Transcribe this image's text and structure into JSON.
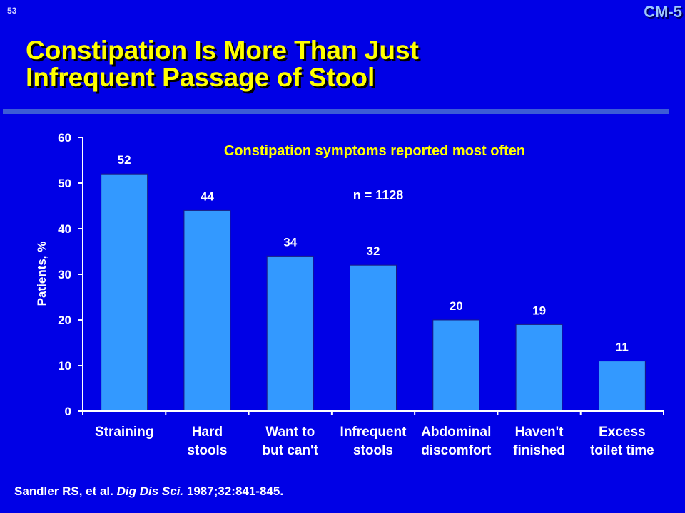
{
  "slide": {
    "number": "53",
    "code": "CM-5",
    "title_line1": "Constipation Is More Than Just",
    "title_line2": "Infrequent Passage of Stool"
  },
  "citation": {
    "authors": "Sandler RS, et al.",
    "journal": "Dig Dis Sci.",
    "details": "1987;32:841-845."
  },
  "colors": {
    "background": "#0000e6",
    "title": "#ffff00",
    "bar": "#3399ff",
    "axis": "#ffffff",
    "text": "#ffffff"
  },
  "chart_data": {
    "type": "bar",
    "title": "Constipation symptoms reported most often",
    "annotation": "n = 1128",
    "ylabel": "Patients, %",
    "xlabel": "",
    "ylim": [
      0,
      60
    ],
    "yticks": [
      0,
      10,
      20,
      30,
      40,
      50,
      60
    ],
    "grid": false,
    "legend": "none",
    "categories": [
      [
        "Straining"
      ],
      [
        "Hard",
        "stools"
      ],
      [
        "Want to",
        "but can't"
      ],
      [
        "Infrequent",
        "stools"
      ],
      [
        "Abdominal",
        "discomfort"
      ],
      [
        "Haven't",
        "finished"
      ],
      [
        "Excess",
        "toilet time"
      ]
    ],
    "values": [
      52,
      44,
      34,
      32,
      20,
      19,
      11
    ]
  }
}
